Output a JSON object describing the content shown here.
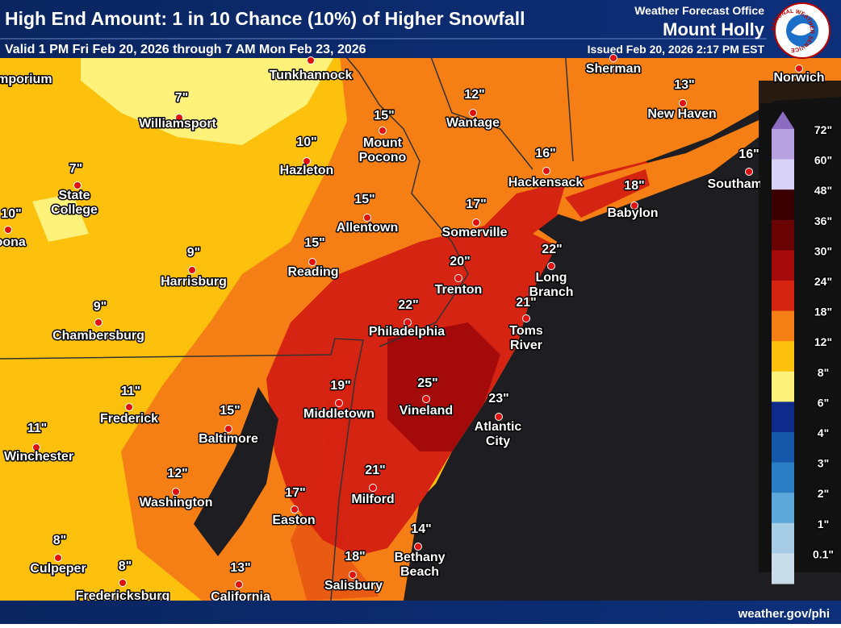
{
  "header": {
    "title": "High End Amount: 1 in 10 Chance (10%) of Higher Snowfall",
    "valid": "Valid 1 PM Fri Feb 20, 2026 through 7 AM Mon Feb 23, 2026",
    "office_label": "Weather Forecast Office",
    "office": "Mount Holly",
    "issued": "Issued Feb 20, 2026 2:17 PM EST",
    "logo_text": "NATIONAL WEATHER SERVICE"
  },
  "cities": [
    {
      "name": "Emporium"
    },
    {
      "name": "Tunkhannock"
    },
    {
      "name": "Williamsport",
      "amount": "7\""
    },
    {
      "name": "Hazleton",
      "amount": "10\""
    },
    {
      "name": "Mount Pocono",
      "amount": "15\""
    },
    {
      "name": "Wantage",
      "amount": "12\""
    },
    {
      "name": "Sherman"
    },
    {
      "name": "New Haven",
      "amount": "13\""
    },
    {
      "name": "Norwich"
    },
    {
      "name": "Hackensack",
      "amount": "16\""
    },
    {
      "name": "Babylon",
      "amount": "18\""
    },
    {
      "name": "Southampton",
      "amount": "16\""
    },
    {
      "name": "State College",
      "amount": "7\""
    },
    {
      "name": "Altoona",
      "amount": "10\""
    },
    {
      "name": "Allentown",
      "amount": "15\""
    },
    {
      "name": "Somerville",
      "amount": "17\""
    },
    {
      "name": "Reading",
      "amount": "15\""
    },
    {
      "name": "Harrisburg",
      "amount": "9\""
    },
    {
      "name": "Trenton",
      "amount": "20\""
    },
    {
      "name": "Long Branch",
      "amount": "22\""
    },
    {
      "name": "Philadelphia",
      "amount": "22\""
    },
    {
      "name": "Toms River",
      "amount": "21\""
    },
    {
      "name": "Chambersburg",
      "amount": "9\""
    },
    {
      "name": "Frederick",
      "amount": "11\""
    },
    {
      "name": "Middletown",
      "amount": "19\""
    },
    {
      "name": "Vineland",
      "amount": "25\""
    },
    {
      "name": "Atlantic City",
      "amount": "23\""
    },
    {
      "name": "Baltimore",
      "amount": "15\""
    },
    {
      "name": "Winchester",
      "amount": "11\""
    },
    {
      "name": "Washington",
      "amount": "12\""
    },
    {
      "name": "Easton",
      "amount": "17\""
    },
    {
      "name": "Milford",
      "amount": "21\""
    },
    {
      "name": "Bethany Beach",
      "amount": "14\""
    },
    {
      "name": "Culpeper",
      "amount": "8\""
    },
    {
      "name": "Fredericksburg",
      "amount": "8\""
    },
    {
      "name": "Salisbury",
      "amount": "18\""
    },
    {
      "name": "California",
      "amount": "13\""
    }
  ],
  "legend": {
    "labels": [
      "72\"",
      "60\"",
      "48\"",
      "36\"",
      "30\"",
      "24\"",
      "18\"",
      "12\"",
      "8\"",
      "6\"",
      "4\"",
      "3\"",
      "2\"",
      "1\"",
      "0.1\""
    ],
    "colors": [
      "#8c6cc0",
      "#b6a2de",
      "#d8d2f6",
      "#3a0000",
      "#6a0404",
      "#a40a0a",
      "#d62412",
      "#f57f14",
      "#fdc10d",
      "#fff27a",
      "#0e2b8c",
      "#1557a8",
      "#2b7fc4",
      "#5da7da",
      "#a6cce6",
      "#c9dcea"
    ]
  },
  "footer": {
    "url": "weather.gov/phi"
  }
}
